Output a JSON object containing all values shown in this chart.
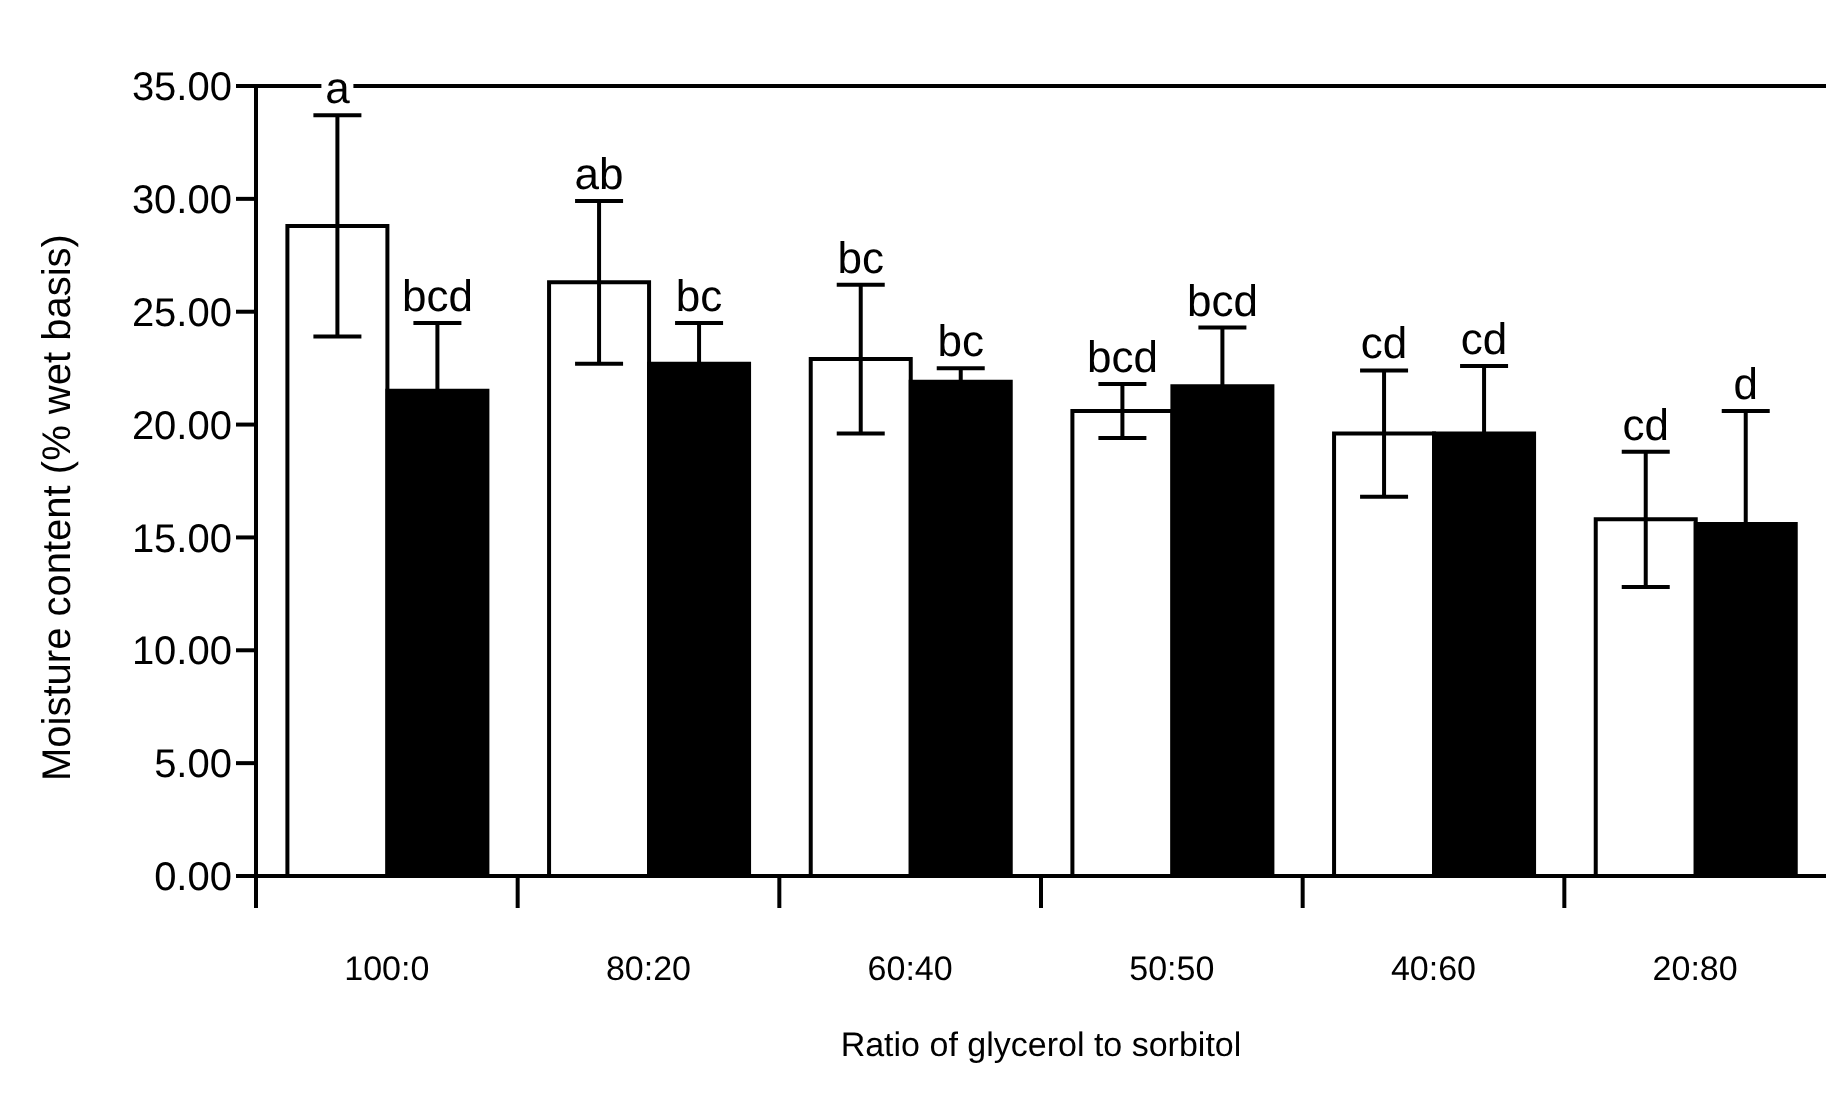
{
  "chart_data": {
    "type": "bar",
    "xlabel": "Ratio of glycerol to sorbitol",
    "ylabel": "Moisture content (% wet basis)",
    "categories": [
      "100:0",
      "80:20",
      "60:40",
      "50:50",
      "40:60",
      "20:80"
    ],
    "series": [
      {
        "color": "#ffffff",
        "values": [
          28.8,
          26.3,
          22.9,
          20.6,
          19.6,
          15.8
        ],
        "errors": [
          4.9,
          3.6,
          3.3,
          1.2,
          2.8,
          3.0
        ],
        "value_labels": [
          "a",
          "ab",
          "bc",
          "bcd",
          "cd",
          "cd"
        ]
      },
      {
        "color": "#000000",
        "values": [
          21.5,
          22.7,
          21.9,
          21.7,
          19.6,
          15.6
        ],
        "errors": [
          3.0,
          1.8,
          0.6,
          2.6,
          3.0,
          5.0
        ],
        "value_labels": [
          "bcd",
          "bc",
          "bc",
          "bcd",
          "cd",
          "d"
        ]
      }
    ],
    "ylim": [
      0,
      35
    ],
    "yticks": [
      {
        "value": 0,
        "label": "0.00"
      },
      {
        "value": 5,
        "label": "5.00"
      },
      {
        "value": 10,
        "label": "10.00"
      },
      {
        "value": 15,
        "label": "15.00"
      },
      {
        "value": 20,
        "label": "20.00"
      },
      {
        "value": 25,
        "label": "25.00"
      },
      {
        "value": 30,
        "label": "30.00"
      },
      {
        "value": 35,
        "label": "35.00"
      }
    ],
    "grid": false,
    "legend": false
  }
}
